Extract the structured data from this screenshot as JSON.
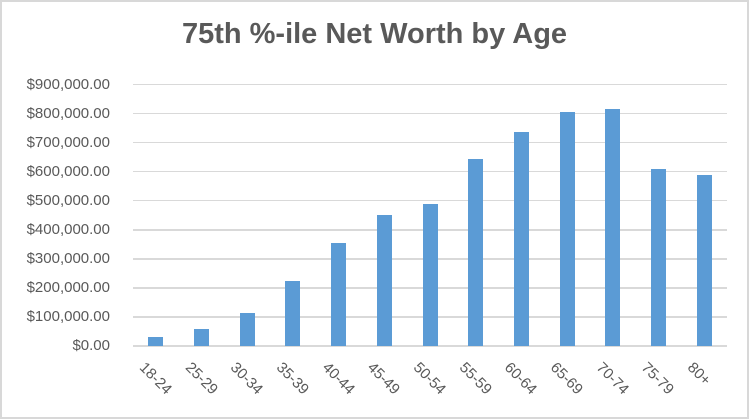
{
  "chart_data": {
    "type": "bar",
    "title": "75th %-ile Net Worth by Age",
    "categories": [
      "18-24",
      "25-29",
      "30-34",
      "35-39",
      "40-44",
      "45-49",
      "50-54",
      "55-59",
      "60-64",
      "65-69",
      "70-74",
      "75-79",
      "80+"
    ],
    "values": [
      30000,
      60000,
      115000,
      225000,
      355000,
      450000,
      490000,
      645000,
      735000,
      805000,
      815000,
      610000,
      590000
    ],
    "xlabel": "",
    "ylabel": "",
    "ylim": [
      0,
      900000
    ],
    "ytick_step": 100000,
    "ytick_labels": [
      "$0.00",
      "$100,000.00",
      "$200,000.00",
      "$300,000.00",
      "$400,000.00",
      "$500,000.00",
      "$600,000.00",
      "$700,000.00",
      "$800,000.00",
      "$900,000.00"
    ],
    "grid": true,
    "legend": "none",
    "style": {
      "bar_color": "#5B9BD5",
      "gridline_color": "#D9D9D9",
      "axis_line_color": "#D9D9D9",
      "text_color": "#595959",
      "title_color": "#595959",
      "background": "#FFFFFF",
      "border_color": "#D8D8D8"
    }
  }
}
